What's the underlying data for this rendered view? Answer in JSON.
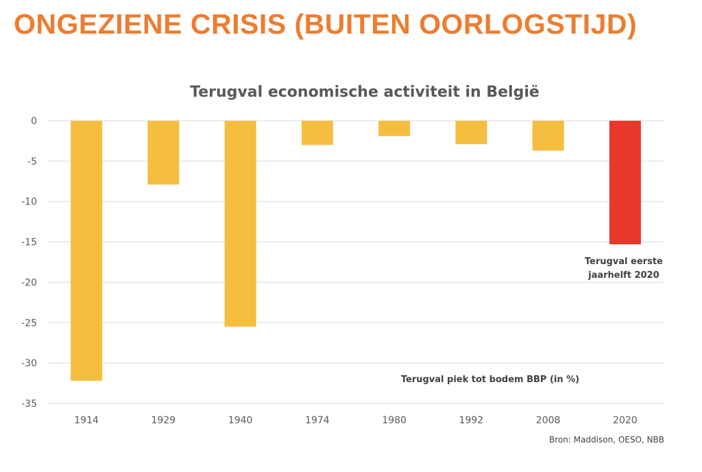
{
  "slide": {
    "title": "ONGEZIENE CRISIS (BUITEN OORLOGSTIJD)",
    "source": "Bron: Maddison, OESO, NBB"
  },
  "colors": {
    "title": "#ED7D31",
    "bar": "#F5BE41",
    "highlight_bar": "#E8372B",
    "grid": "#D9D9D9",
    "text": "#595959"
  },
  "chart_data": {
    "type": "bar",
    "title": "Terugval economische activiteit in België",
    "categories": [
      "1914",
      "1929",
      "1940",
      "1974",
      "1980",
      "1992",
      "2008",
      "2020"
    ],
    "values": [
      -32.2,
      -7.9,
      -25.5,
      -3.0,
      -1.9,
      -2.9,
      -3.7,
      -15.3
    ],
    "highlight_index": 7,
    "ylim": [
      -35,
      0
    ],
    "yticks": [
      0,
      -5,
      -10,
      -15,
      -20,
      -25,
      -30,
      -35
    ],
    "grid": true,
    "annotations": [
      {
        "lines": [
          "Terugval eerste",
          "jaarhelft 2020"
        ],
        "category": "2020"
      },
      {
        "lines": [
          "Terugval piek tot bodem BBP (in %)"
        ]
      }
    ]
  }
}
